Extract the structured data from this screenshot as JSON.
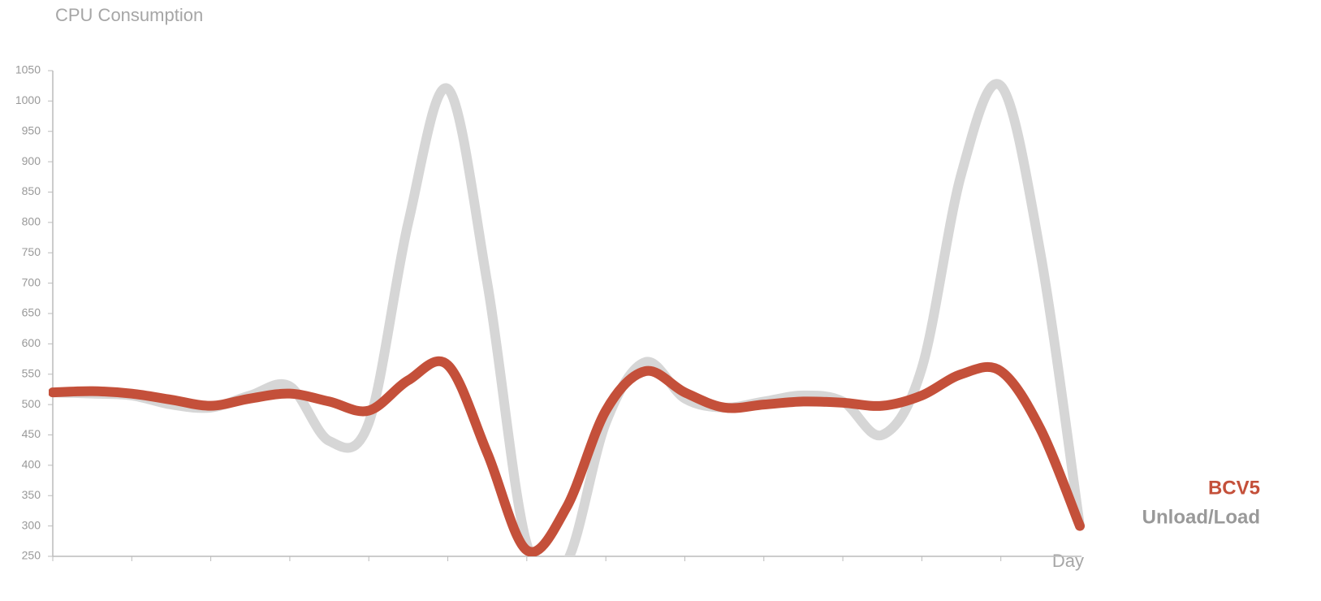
{
  "chart_data": {
    "type": "line",
    "title": "CPU Consumption",
    "x_label": "Day",
    "categories": [
      null,
      null,
      null,
      null,
      null,
      null,
      null,
      null,
      null,
      null,
      null,
      null,
      null,
      null,
      null,
      null,
      null,
      null,
      null,
      null,
      null,
      null,
      null,
      null,
      null,
      null,
      null
    ],
    "series": [
      {
        "name": "BCV5",
        "color": "#c4503a",
        "values": [
          520,
          522,
          518,
          508,
          498,
          510,
          518,
          505,
          490,
          540,
          565,
          420,
          260,
          330,
          490,
          555,
          520,
          495,
          500,
          505,
          503,
          498,
          515,
          550,
          555,
          460,
          300
        ]
      },
      {
        "name": "Unload/Load",
        "color": "#d6d6d6",
        "values": [
          520,
          518,
          515,
          500,
          495,
          515,
          530,
          440,
          470,
          800,
          1020,
          700,
          270,
          240,
          470,
          570,
          510,
          495,
          505,
          515,
          505,
          450,
          560,
          880,
          1025,
          750,
          300
        ]
      }
    ],
    "ylim": [
      250,
      1050
    ],
    "yticks": [
      250,
      300,
      350,
      400,
      450,
      500,
      550,
      600,
      650,
      700,
      750,
      800,
      850,
      900,
      950,
      1000,
      1050
    ],
    "legend": "right"
  }
}
